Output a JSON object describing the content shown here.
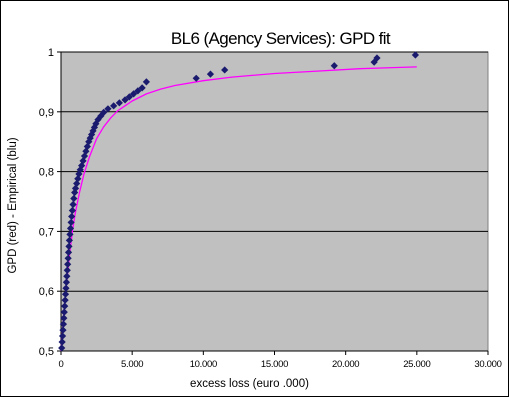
{
  "chart_data": {
    "type": "scatter",
    "title": "BL6 (Agency Services): GPD fit",
    "xlabel": "excess loss (euro .000)",
    "ylabel": "GPD (red) - Empirical (blu)",
    "xlim": [
      0,
      30000
    ],
    "ylim": [
      0.5,
      1.0
    ],
    "x_tick_labels": [
      "0",
      "5.000",
      "10.000",
      "15.000",
      "20.000",
      "25.000",
      "30.000"
    ],
    "y_tick_labels": [
      "0,5",
      "0,6",
      "0,7",
      "0,8",
      "0,9",
      "1"
    ],
    "x_ticks": [
      0,
      5000,
      10000,
      15000,
      20000,
      25000,
      30000
    ],
    "y_ticks": [
      0.5,
      0.6,
      0.7,
      0.8,
      0.9,
      1.0
    ],
    "grid": "horizontal",
    "plot_background": "#c0c0c0",
    "series": [
      {
        "kind": "points",
        "marker": "diamond",
        "color": "#1a1a6e",
        "points": [
          [
            50,
            0.505
          ],
          [
            80,
            0.515
          ],
          [
            110,
            0.525
          ],
          [
            140,
            0.535
          ],
          [
            170,
            0.545
          ],
          [
            200,
            0.555
          ],
          [
            230,
            0.565
          ],
          [
            260,
            0.575
          ],
          [
            290,
            0.585
          ],
          [
            320,
            0.595
          ],
          [
            350,
            0.605
          ],
          [
            380,
            0.615
          ],
          [
            410,
            0.625
          ],
          [
            440,
            0.635
          ],
          [
            470,
            0.645
          ],
          [
            500,
            0.655
          ],
          [
            530,
            0.665
          ],
          [
            560,
            0.675
          ],
          [
            590,
            0.685
          ],
          [
            630,
            0.695
          ],
          [
            670,
            0.705
          ],
          [
            710,
            0.715
          ],
          [
            750,
            0.725
          ],
          [
            800,
            0.735
          ],
          [
            850,
            0.745
          ],
          [
            900,
            0.755
          ],
          [
            960,
            0.765
          ],
          [
            1020,
            0.772
          ],
          [
            1100,
            0.78
          ],
          [
            1180,
            0.788
          ],
          [
            1260,
            0.796
          ],
          [
            1350,
            0.803
          ],
          [
            1450,
            0.81
          ],
          [
            1550,
            0.818
          ],
          [
            1650,
            0.826
          ],
          [
            1750,
            0.834
          ],
          [
            1850,
            0.842
          ],
          [
            1950,
            0.85
          ],
          [
            2050,
            0.856
          ],
          [
            2150,
            0.862
          ],
          [
            2250,
            0.868
          ],
          [
            2350,
            0.874
          ],
          [
            2450,
            0.88
          ],
          [
            2600,
            0.887
          ],
          [
            2800,
            0.893
          ],
          [
            3000,
            0.899
          ],
          [
            3300,
            0.905
          ],
          [
            3700,
            0.91
          ],
          [
            4100,
            0.915
          ],
          [
            4500,
            0.92
          ],
          [
            4800,
            0.925
          ],
          [
            5100,
            0.93
          ],
          [
            5400,
            0.935
          ],
          [
            5700,
            0.94
          ],
          [
            6000,
            0.95
          ],
          [
            9500,
            0.956
          ],
          [
            10500,
            0.963
          ],
          [
            11500,
            0.97
          ],
          [
            19200,
            0.977
          ],
          [
            22000,
            0.983
          ],
          [
            22200,
            0.99
          ],
          [
            24900,
            0.995
          ]
        ]
      },
      {
        "kind": "line",
        "color": "#ff00ff",
        "points": [
          [
            0,
            0.5
          ],
          [
            200,
            0.56
          ],
          [
            400,
            0.615
          ],
          [
            600,
            0.66
          ],
          [
            800,
            0.7
          ],
          [
            1000,
            0.73
          ],
          [
            1300,
            0.765
          ],
          [
            1600,
            0.795
          ],
          [
            2000,
            0.825
          ],
          [
            2500,
            0.855
          ],
          [
            3000,
            0.875
          ],
          [
            3500,
            0.89
          ],
          [
            4000,
            0.902
          ],
          [
            5000,
            0.918
          ],
          [
            6000,
            0.93
          ],
          [
            7000,
            0.938
          ],
          [
            8000,
            0.944
          ],
          [
            10000,
            0.952
          ],
          [
            12000,
            0.958
          ],
          [
            15000,
            0.964
          ],
          [
            18000,
            0.968
          ],
          [
            21000,
            0.972
          ],
          [
            25000,
            0.975
          ]
        ]
      }
    ]
  }
}
